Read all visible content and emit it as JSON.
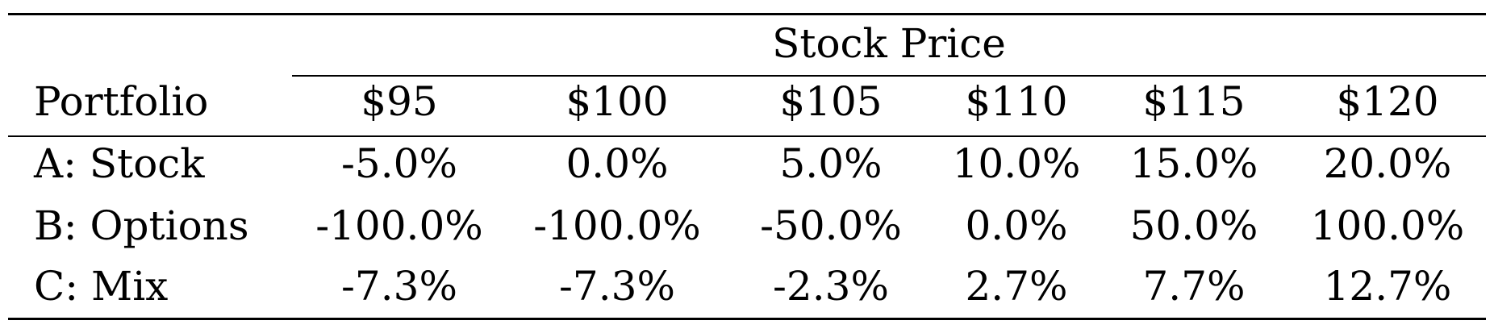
{
  "table": {
    "group_header": "Stock Price",
    "row_header_label": "Portfolio",
    "columns": [
      "$95",
      "$100",
      "$105",
      "$110",
      "$115",
      "$120"
    ],
    "rows": [
      {
        "label": "A: Stock",
        "values": [
          "-5.0%",
          "0.0%",
          "5.0%",
          "10.0%",
          "15.0%",
          "20.0%"
        ]
      },
      {
        "label": "B: Options",
        "values": [
          "-100.0%",
          "-100.0%",
          "-50.0%",
          "0.0%",
          "50.0%",
          "100.0%"
        ]
      },
      {
        "label": "C: Mix",
        "values": [
          "-7.3%",
          "-7.3%",
          "-2.3%",
          "2.7%",
          "7.7%",
          "12.7%"
        ]
      }
    ]
  }
}
